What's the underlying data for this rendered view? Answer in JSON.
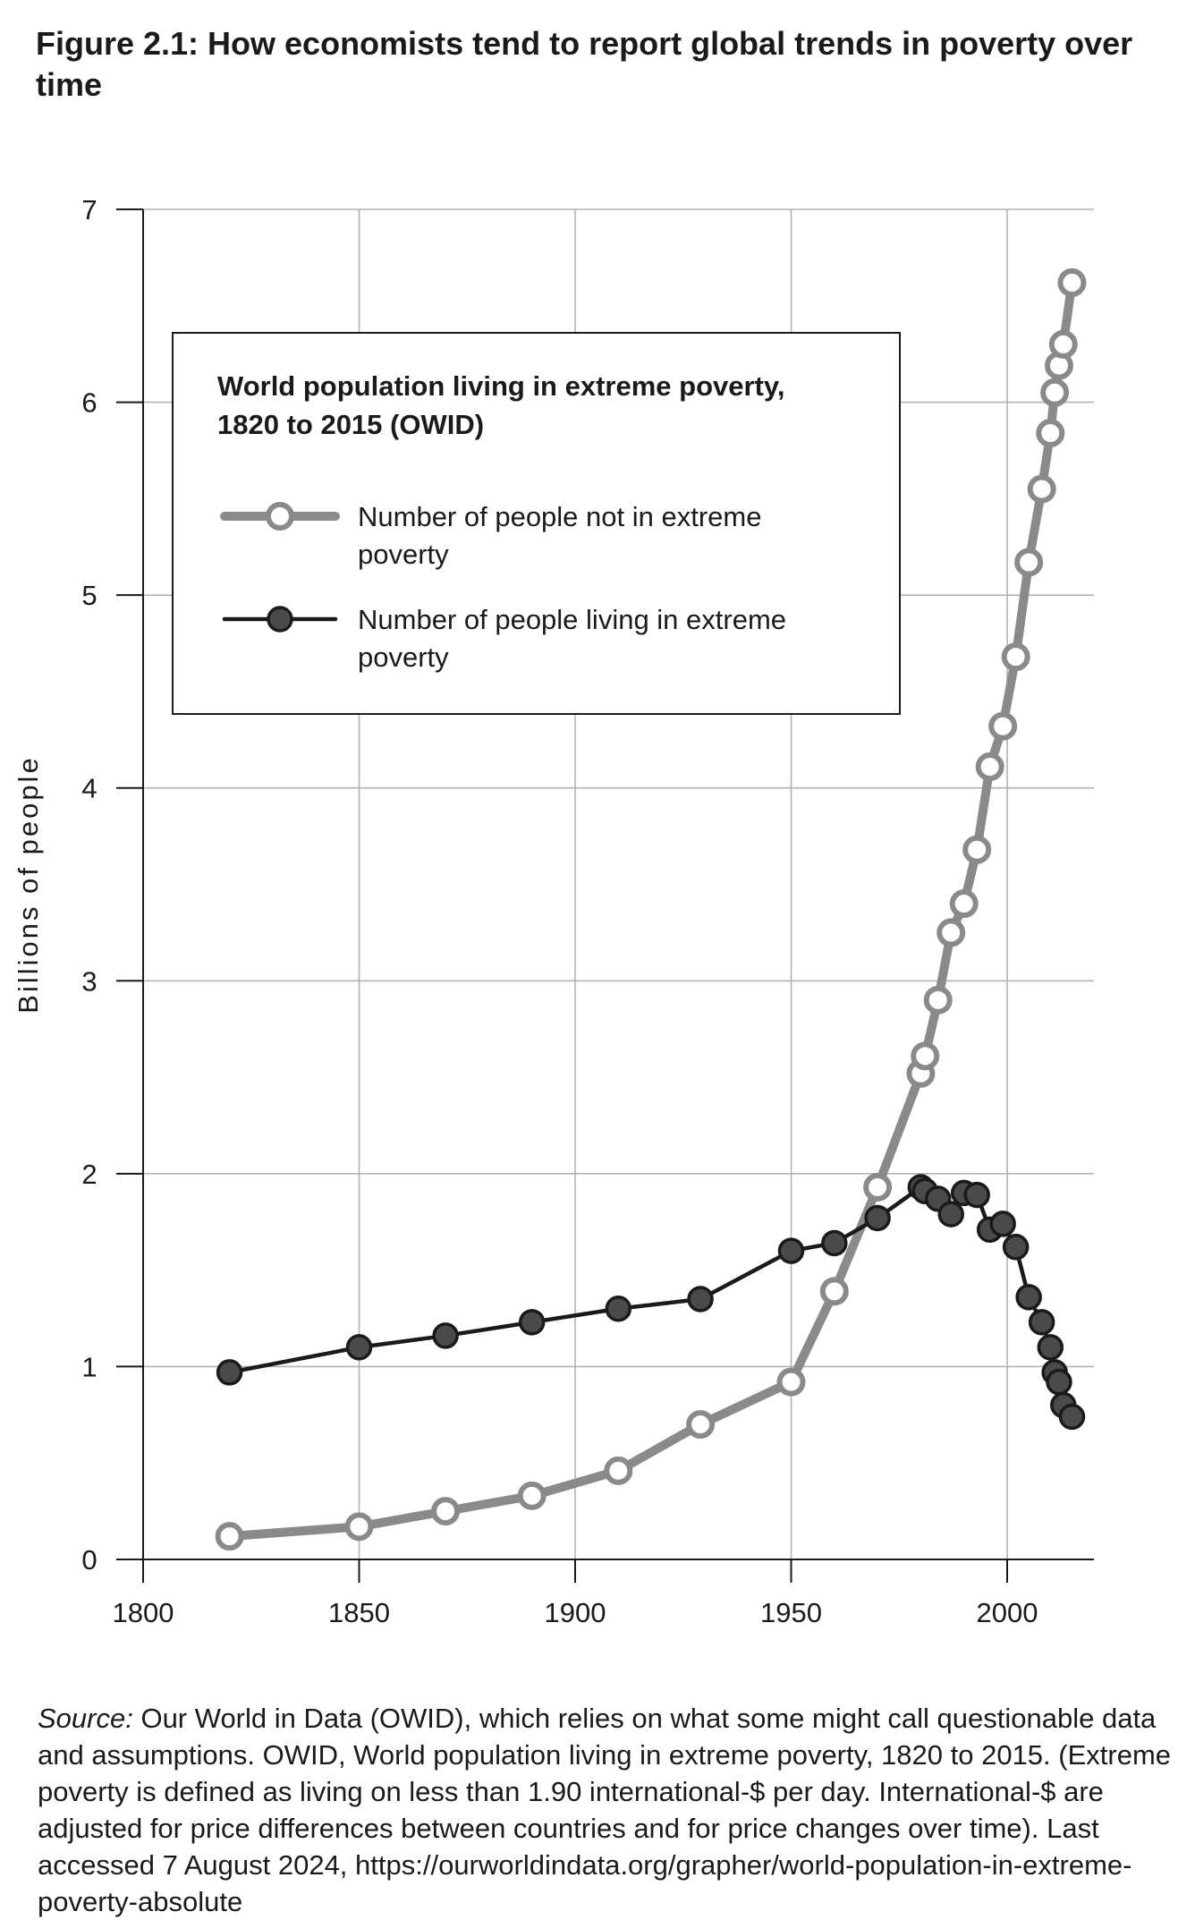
{
  "figure": {
    "title": "Figure 2.1: How economists tend to report global trends in poverty over time",
    "source_label": "Source:",
    "source_text": " Our World in Data (OWID), which relies on what some might call questionable data and assumptions. OWID, World population living in extreme poverty, 1820 to 2015. (Extreme poverty is defined as living on less than 1.90 international-$ per day. International-$ are adjusted for price differences between countries and for price changes over time). Last accessed 7 August 2024, https://ourworldindata.org/grapher/world-population-in-extreme-poverty-absolute"
  },
  "chart_data": {
    "type": "line",
    "legend_title": [
      "World population living in extreme poverty,",
      "1820 to 2015 (OWID)"
    ],
    "xlabel": "",
    "ylabel": "Billions of people",
    "xlim": [
      1800,
      2020
    ],
    "ylim": [
      0,
      7
    ],
    "xticks": [
      1800,
      1850,
      1900,
      1950,
      2000
    ],
    "yticks": [
      0,
      1,
      2,
      3,
      4,
      5,
      6,
      7
    ],
    "grid": true,
    "legend_position": "top-left",
    "colors": {
      "not_poor": "#8a8a8c",
      "poor_line": "#1a1a1a",
      "poor_fill": "#4a4a4a",
      "grid": "#b3b3b3"
    },
    "series": [
      {
        "name": "Number of people not in extreme poverty",
        "legend_lines": [
          "Number of people not in extreme",
          "poverty"
        ],
        "x": [
          1820,
          1850,
          1870,
          1890,
          1910,
          1929,
          1950,
          1960,
          1970,
          1980,
          1981,
          1984,
          1987,
          1990,
          1993,
          1996,
          1999,
          2002,
          2005,
          2008,
          2010,
          2011,
          2012,
          2013,
          2015
        ],
        "values": [
          0.12,
          0.17,
          0.25,
          0.33,
          0.46,
          0.7,
          0.92,
          1.39,
          1.93,
          2.52,
          2.61,
          2.9,
          3.25,
          3.4,
          3.68,
          4.11,
          4.32,
          4.68,
          5.17,
          5.55,
          5.84,
          6.05,
          6.19,
          6.3,
          6.62
        ]
      },
      {
        "name": "Number of people living in extreme poverty",
        "legend_lines": [
          "Number of people living in extreme",
          "poverty"
        ],
        "x": [
          1820,
          1850,
          1870,
          1890,
          1910,
          1929,
          1950,
          1960,
          1970,
          1980,
          1981,
          1984,
          1987,
          1990,
          1993,
          1996,
          1999,
          2002,
          2005,
          2008,
          2010,
          2011,
          2012,
          2013,
          2015
        ],
        "values": [
          0.97,
          1.1,
          1.16,
          1.23,
          1.3,
          1.35,
          1.6,
          1.64,
          1.77,
          1.93,
          1.91,
          1.87,
          1.79,
          1.9,
          1.89,
          1.71,
          1.74,
          1.62,
          1.36,
          1.23,
          1.1,
          0.97,
          0.92,
          0.8,
          0.74
        ]
      }
    ]
  }
}
